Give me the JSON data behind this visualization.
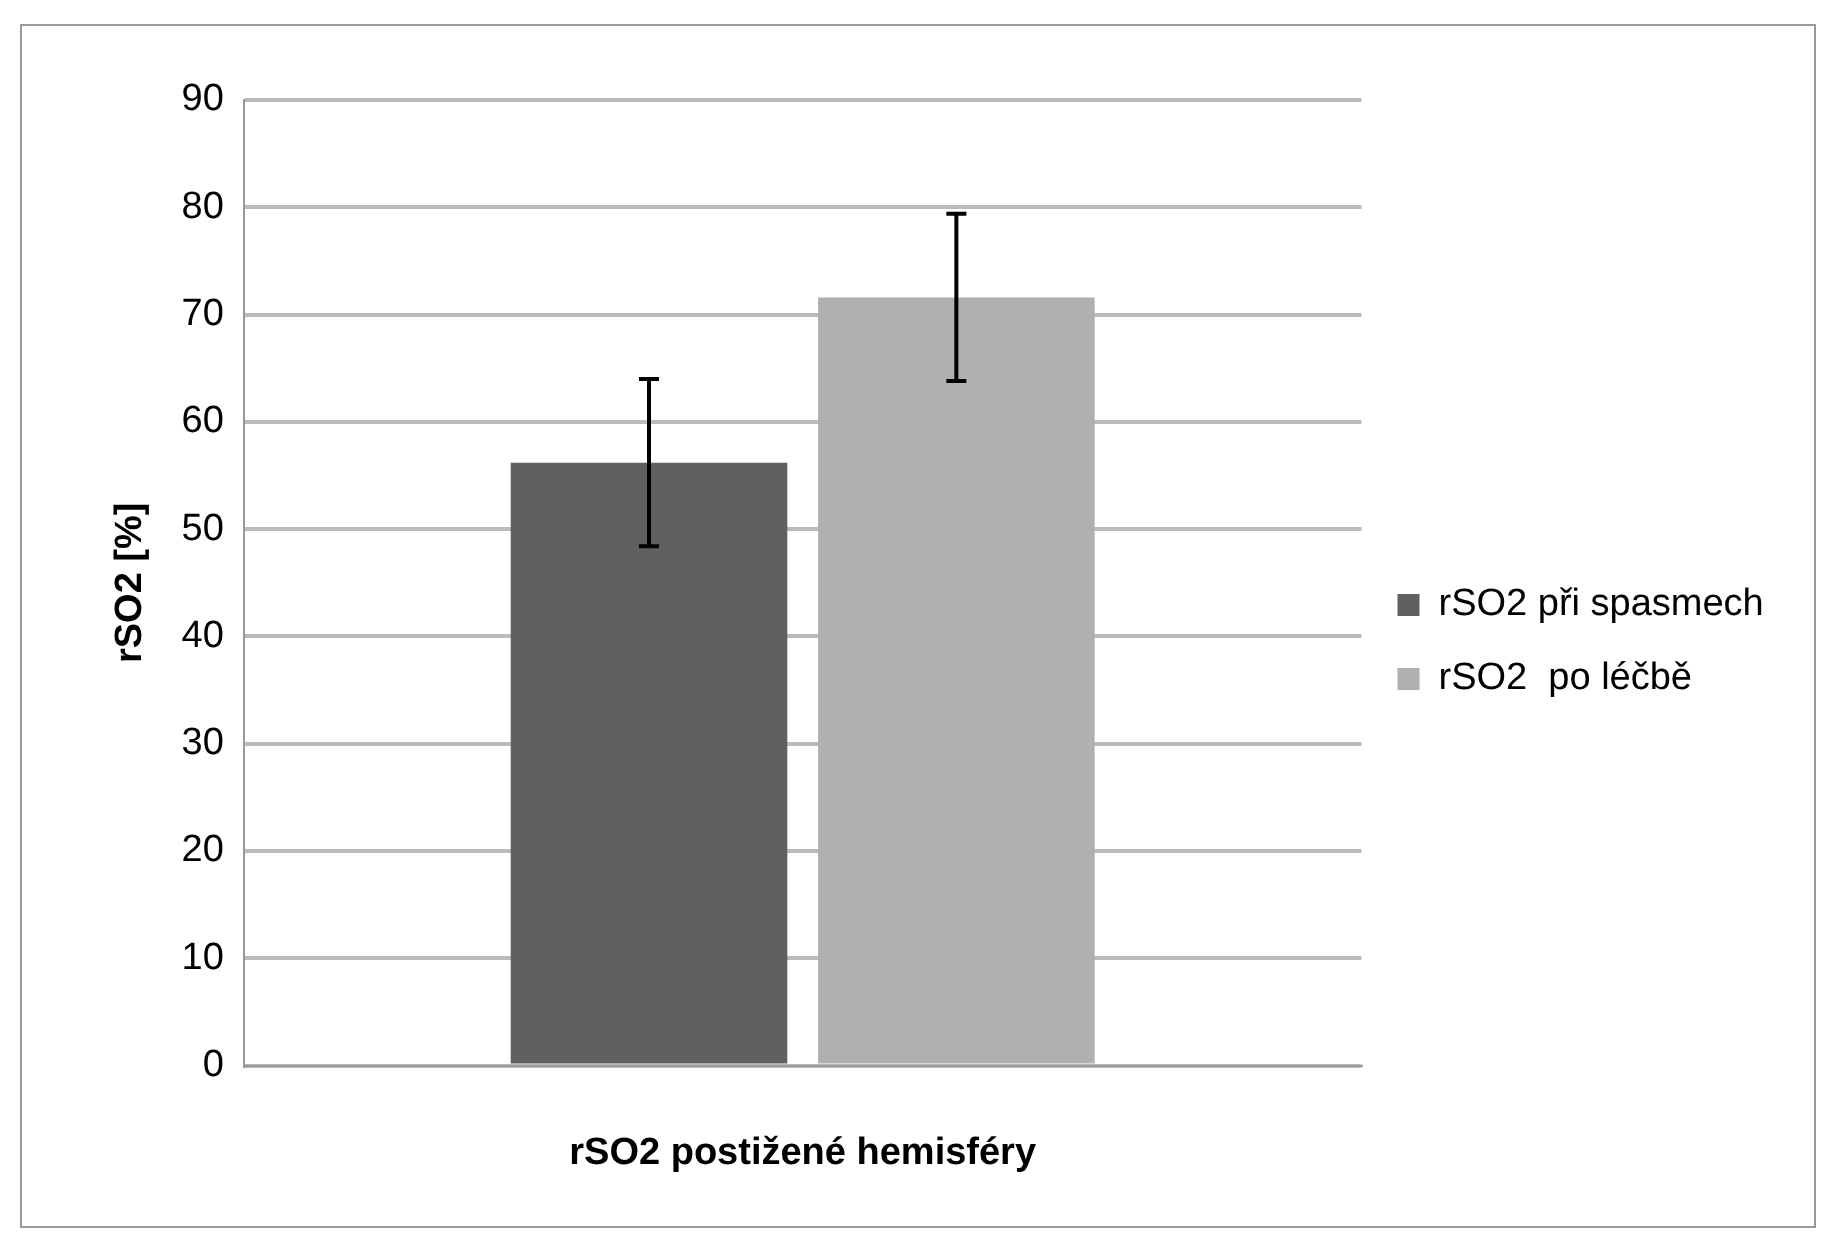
{
  "chart_data": {
    "type": "bar",
    "xlabel": "rSO2 postižené hemisféry",
    "ylabel": "rSO2 [%]",
    "categories": [
      null
    ],
    "series": [
      {
        "name": "rSO2 při spasmech",
        "color": "#606060",
        "values": [
          56.2
        ],
        "errors": [
          7.8
        ]
      },
      {
        "name": "rSO2  po léčbě",
        "color": "#b0b0b0",
        "values": [
          71.6
        ],
        "errors": [
          7.8
        ]
      }
    ],
    "ylim": [
      0,
      90
    ],
    "yticks": [
      0,
      10,
      20,
      30,
      40,
      50,
      60,
      70,
      80,
      90
    ],
    "grid": "y",
    "legend": "right"
  }
}
